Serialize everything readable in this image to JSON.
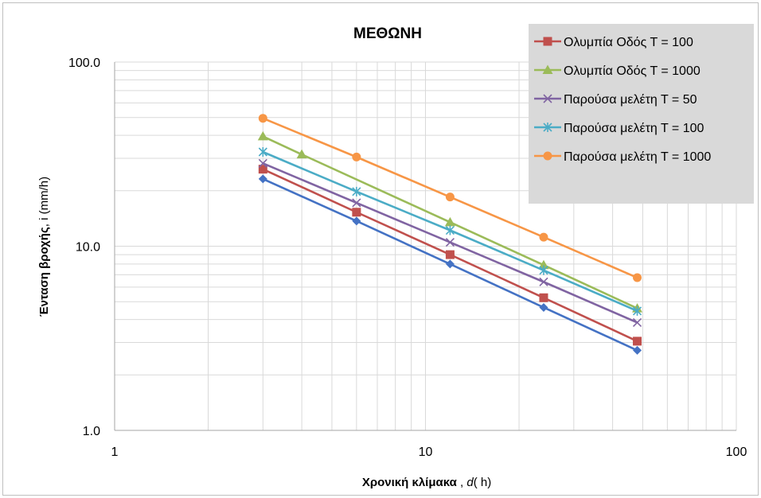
{
  "chart_data": {
    "type": "line",
    "title": "ΜΕΘΩΝΗ",
    "xlabel_bold": "Χρονική κλίμακα",
    "xlabel_rest": " , ",
    "xlabel_var": "d",
    "xlabel_unit": "( h)",
    "ylabel_bold": "Ένταση βροχής",
    "ylabel_rest": ", i (mm/h)",
    "x_scale": "log",
    "y_scale": "log",
    "xlim": [
      1,
      100
    ],
    "ylim": [
      1,
      100
    ],
    "x_ticks": [
      1,
      10,
      100
    ],
    "x_tick_labels": [
      "1",
      "10",
      "100"
    ],
    "y_ticks": [
      1,
      10,
      100
    ],
    "y_tick_labels": [
      "1.0",
      "10.0",
      "100.0"
    ],
    "grid": "major and minor",
    "legend_position": "top-right",
    "series": [
      {
        "name": "",
        "color": "#4472C4",
        "marker": "diamond",
        "x": [
          3,
          6,
          12,
          24,
          48
        ],
        "y": [
          23.2,
          13.7,
          8.0,
          4.65,
          2.72
        ]
      },
      {
        "name": "Ολυμπία Οδός Τ = 100",
        "color": "#C0504D",
        "marker": "square",
        "x": [
          3,
          6,
          12,
          24,
          48
        ],
        "y": [
          26.2,
          15.3,
          9.0,
          5.25,
          3.05
        ]
      },
      {
        "name": "Ολυμπία Οδός Τ = 1000",
        "color": "#9BBB59",
        "marker": "triangle",
        "x": [
          3,
          4,
          12,
          24,
          48
        ],
        "y": [
          39.5,
          31.5,
          13.5,
          7.9,
          4.6
        ]
      },
      {
        "name": "Παρούσα μελέτη Τ = 50",
        "color": "#8064A2",
        "marker": "x",
        "x": [
          3,
          6,
          12,
          24,
          48
        ],
        "y": [
          28.2,
          17.2,
          10.5,
          6.4,
          3.85
        ]
      },
      {
        "name": "Παρούσα μελέτη Τ = 100",
        "color": "#4BACC6",
        "marker": "star",
        "x": [
          3,
          6,
          12,
          24,
          48
        ],
        "y": [
          32.5,
          19.8,
          12.2,
          7.4,
          4.45
        ]
      },
      {
        "name": "Παρούσα μελέτη Τ = 1000",
        "color": "#F79646",
        "marker": "circle",
        "x": [
          3,
          6,
          12,
          24,
          48
        ],
        "y": [
          49.5,
          30.5,
          18.5,
          11.2,
          6.75
        ]
      }
    ]
  }
}
